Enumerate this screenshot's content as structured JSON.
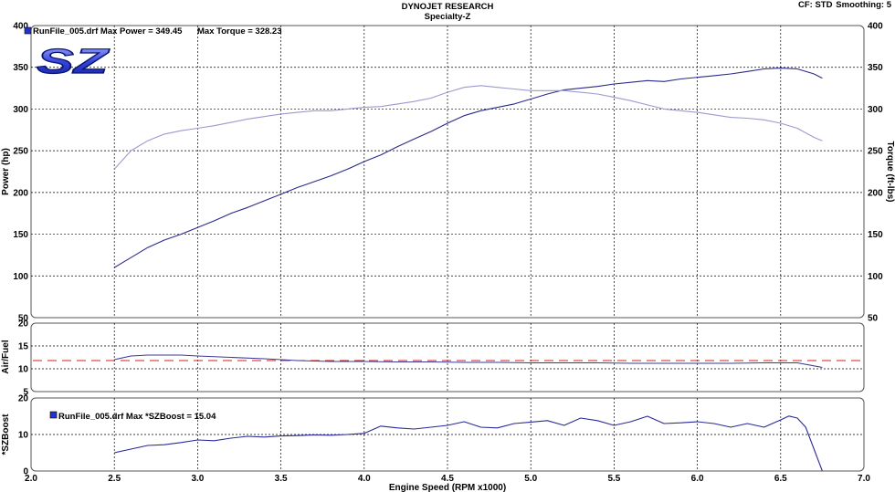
{
  "header": {
    "title": "DYNOJET RESEARCH",
    "subtitle": "Specialty-Z",
    "correction": "CF: STD",
    "smoothing": "Smoothing: 5"
  },
  "logo": {
    "text": "SZ",
    "colors": [
      "#1a2fc0",
      "#aab4ff"
    ]
  },
  "colors": {
    "power": "#2a2a8c",
    "torque": "#9a9ad0",
    "airfuel": "#3a3a9a",
    "target": "#cc2222",
    "boost": "#2a2a9a",
    "legend_marker": "#2233cc",
    "panel_border": "#555555",
    "grid": "#000000"
  },
  "legends": {
    "power_panel": "RunFile_005.drf Max Power = 349.45",
    "torque_panel": "Max Torque = 328.23",
    "boost_panel": "RunFile_005.drf Max *SZBoost = 15.04"
  },
  "chart_data": [
    {
      "type": "line",
      "panel": "power-torque",
      "ylabel": "Power (hp)",
      "y2label": "Torque (ft-lbs)",
      "xlim": [
        2.0,
        7.0
      ],
      "ylim": [
        50,
        400
      ],
      "y2lim": [
        50,
        400
      ],
      "yticks": [
        50,
        100,
        150,
        200,
        250,
        300,
        350,
        400
      ],
      "grid": true,
      "series": [
        {
          "key": "power",
          "axis": "left",
          "x": [
            2.5,
            2.6,
            2.7,
            2.8,
            2.9,
            3.0,
            3.1,
            3.2,
            3.3,
            3.4,
            3.5,
            3.6,
            3.7,
            3.8,
            3.9,
            4.0,
            4.1,
            4.2,
            4.3,
            4.4,
            4.5,
            4.6,
            4.7,
            4.8,
            4.9,
            5.0,
            5.1,
            5.2,
            5.3,
            5.4,
            5.5,
            5.6,
            5.7,
            5.8,
            5.9,
            6.0,
            6.1,
            6.2,
            6.3,
            6.4,
            6.5,
            6.6,
            6.7,
            6.75
          ],
          "values": [
            110,
            122,
            134,
            143,
            150,
            158,
            166,
            175,
            182,
            190,
            198,
            206,
            213,
            220,
            228,
            237,
            245,
            255,
            264,
            273,
            283,
            292,
            298,
            302,
            306,
            312,
            318,
            323,
            325,
            327,
            330,
            332,
            334,
            333,
            336,
            338,
            340,
            342,
            345,
            348,
            349,
            348,
            342,
            337
          ]
        },
        {
          "key": "torque",
          "axis": "right",
          "x": [
            2.5,
            2.6,
            2.7,
            2.8,
            2.9,
            3.0,
            3.1,
            3.2,
            3.3,
            3.4,
            3.5,
            3.6,
            3.7,
            3.8,
            3.9,
            4.0,
            4.1,
            4.2,
            4.3,
            4.4,
            4.5,
            4.6,
            4.7,
            4.8,
            4.9,
            5.0,
            5.1,
            5.2,
            5.3,
            5.4,
            5.5,
            5.6,
            5.7,
            5.8,
            5.9,
            6.0,
            6.1,
            6.2,
            6.3,
            6.4,
            6.5,
            6.6,
            6.7,
            6.75
          ],
          "values": [
            228,
            250,
            262,
            270,
            274,
            277,
            280,
            284,
            288,
            291,
            294,
            296,
            298,
            298,
            300,
            302,
            303,
            306,
            309,
            313,
            320,
            326,
            328,
            326,
            324,
            322,
            322,
            322,
            320,
            318,
            314,
            310,
            305,
            300,
            298,
            296,
            293,
            290,
            289,
            287,
            283,
            277,
            266,
            262
          ]
        }
      ]
    },
    {
      "type": "line",
      "panel": "air-fuel",
      "ylabel": "Air/Fuel",
      "xlim": [
        2.0,
        7.0
      ],
      "ylim": [
        5,
        20
      ],
      "yticks": [
        5,
        10,
        15,
        20
      ],
      "grid": true,
      "target": 11.8,
      "series": [
        {
          "key": "airfuel",
          "x": [
            2.5,
            2.6,
            2.7,
            2.8,
            2.9,
            3.0,
            3.2,
            3.4,
            3.6,
            3.8,
            4.0,
            4.2,
            4.4,
            4.6,
            4.8,
            5.0,
            5.2,
            5.4,
            5.6,
            5.8,
            6.0,
            6.2,
            6.4,
            6.6,
            6.75
          ],
          "values": [
            12.0,
            12.8,
            13.0,
            13.0,
            13.0,
            12.8,
            12.5,
            12.2,
            11.8,
            11.6,
            11.6,
            11.5,
            11.5,
            11.4,
            11.4,
            11.3,
            11.3,
            11.3,
            11.2,
            11.2,
            11.2,
            11.2,
            11.3,
            11.3,
            10.3
          ]
        }
      ]
    },
    {
      "type": "line",
      "panel": "boost",
      "ylabel": "*SZBoost",
      "xlabel": "Engine Speed (RPM x1000)",
      "xlim": [
        2.0,
        7.0
      ],
      "xticks": [
        2.0,
        2.5,
        3.0,
        3.5,
        4.0,
        4.5,
        5.0,
        5.5,
        6.0,
        6.5,
        7.0
      ],
      "ylim": [
        0,
        20
      ],
      "yticks": [
        0,
        10,
        20
      ],
      "grid": true,
      "series": [
        {
          "key": "boost",
          "x": [
            2.5,
            2.6,
            2.7,
            2.8,
            2.9,
            3.0,
            3.1,
            3.2,
            3.3,
            3.4,
            3.5,
            3.6,
            3.7,
            3.8,
            3.9,
            4.0,
            4.1,
            4.2,
            4.3,
            4.4,
            4.5,
            4.6,
            4.7,
            4.8,
            4.9,
            5.0,
            5.1,
            5.2,
            5.3,
            5.4,
            5.5,
            5.6,
            5.7,
            5.8,
            5.9,
            6.0,
            6.1,
            6.2,
            6.3,
            6.4,
            6.5,
            6.55,
            6.6,
            6.65,
            6.7,
            6.75
          ],
          "values": [
            5.0,
            6.0,
            7.0,
            7.2,
            7.8,
            8.5,
            8.3,
            9.0,
            9.5,
            9.3,
            9.6,
            9.7,
            9.9,
            9.8,
            10.0,
            10.3,
            12.3,
            11.8,
            11.5,
            12.0,
            12.5,
            13.5,
            12.0,
            11.8,
            13.0,
            13.4,
            13.8,
            12.5,
            14.5,
            13.8,
            12.5,
            13.5,
            15.0,
            13.0,
            13.2,
            13.5,
            13.0,
            12.0,
            13.0,
            12.0,
            14.0,
            15.04,
            14.5,
            12.0,
            6.0,
            0.0
          ]
        }
      ]
    }
  ]
}
